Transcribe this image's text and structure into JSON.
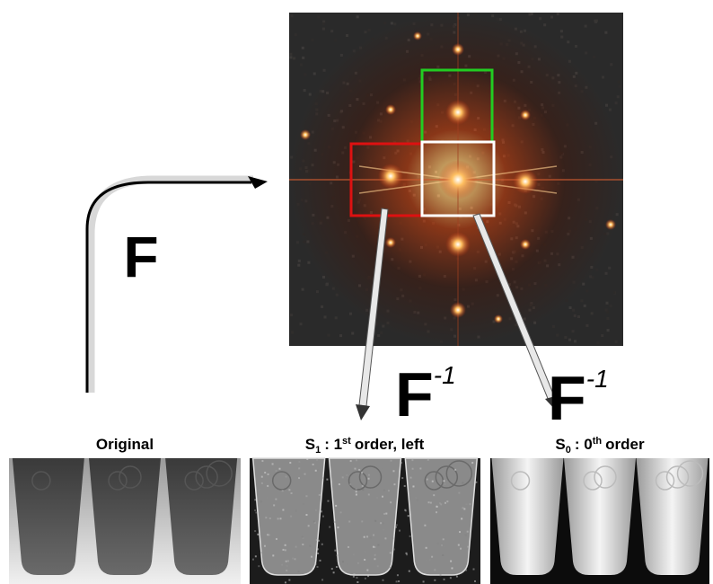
{
  "forward_transform": {
    "symbol": "F"
  },
  "inverse_transforms": [
    {
      "symbol": "F",
      "exponent": "-1"
    },
    {
      "symbol": "F",
      "exponent": "-1"
    }
  ],
  "panels": [
    {
      "text": "Original"
    },
    {
      "letter": "S",
      "subscript": "1",
      "text": ": 1",
      "superscript": "st",
      "suffix": "order, left"
    },
    {
      "letter": "S",
      "subscript": "0",
      "text": ": 0",
      "superscript": "th",
      "suffix": "order"
    }
  ]
}
